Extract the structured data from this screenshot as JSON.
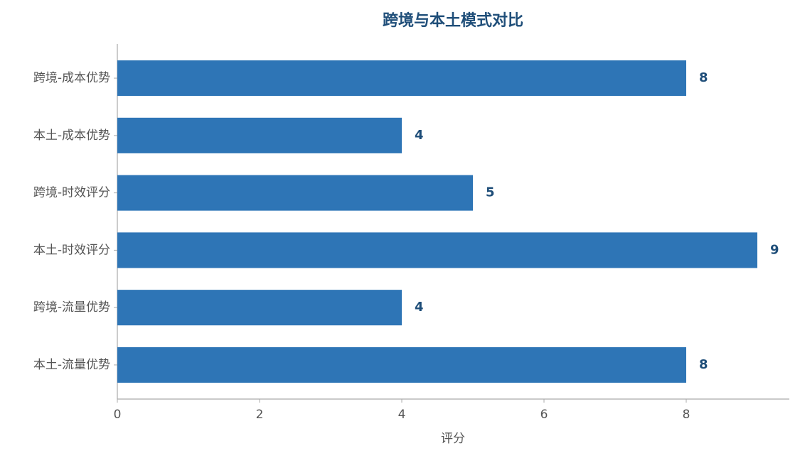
{
  "chart_data": {
    "type": "bar",
    "orientation": "horizontal",
    "title": "跨境与本土模式对比",
    "x_label": "评分",
    "categories": [
      "跨境-成本优势",
      "本土-成本优势",
      "跨境-时效评分",
      "本土-时效评分",
      "跨境-流量优势",
      "本土-流量优势"
    ],
    "values": [
      8,
      4,
      5,
      9,
      4,
      8
    ],
    "color": "#2e75b6",
    "xlim": [
      0,
      9.45
    ],
    "xticks": [
      0,
      2,
      4,
      6,
      8
    ],
    "grid": false
  }
}
